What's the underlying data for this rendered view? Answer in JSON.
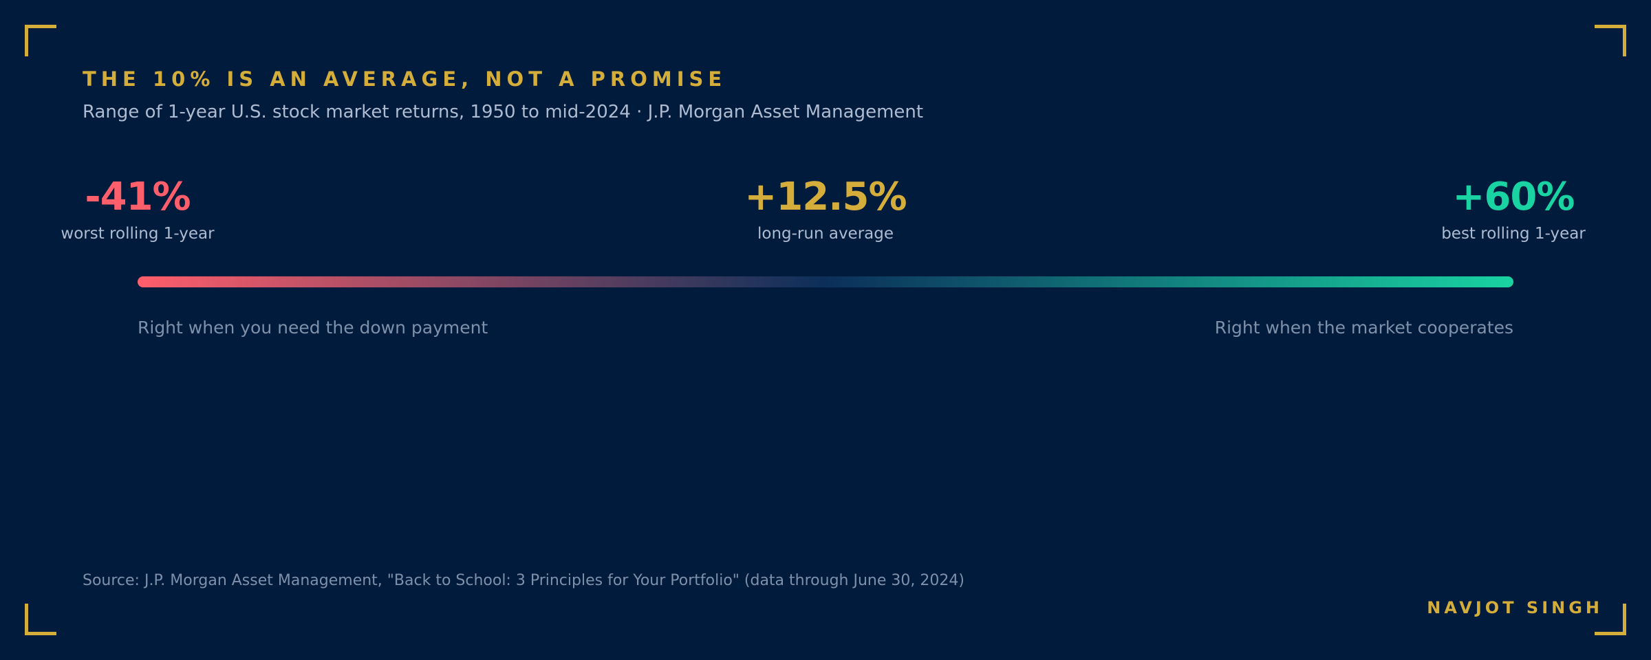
{
  "header": {
    "title": "THE 10% IS AN AVERAGE, NOT A PROMISE",
    "subtitle": "Range of 1-year U.S. stock market returns, 1950 to mid-2024 · J.P. Morgan Asset Management"
  },
  "chart_data": {
    "type": "range",
    "title": "THE 10% IS AN AVERAGE, NOT A PROMISE",
    "subtitle": "Range of 1-year U.S. stock market returns, 1950 to mid-2024 · J.P. Morgan Asset Management",
    "unit": "%",
    "min": {
      "value": -41,
      "display": "-41%",
      "label": "worst rolling 1-year",
      "color": "#ff5e6b"
    },
    "avg": {
      "value": 12.5,
      "display": "+12.5%",
      "label": "long-run average",
      "color": "#d4ad3a"
    },
    "max": {
      "value": 60,
      "display": "+60%",
      "label": "best rolling 1-year",
      "color": "#19d3a2"
    },
    "annotations": {
      "left": "Right when you need the down payment",
      "right": "Right when the market cooperates"
    },
    "gradient_colors": {
      "start": "#ff5e6b",
      "middle": "#0b2f5a",
      "end": "#19d3a2"
    },
    "source": "Source: J.P. Morgan Asset Management, \"Back to School: 3 Principles for Your Portfolio\" (data through June 30, 2024)"
  },
  "footer": {
    "author": "NAVJOT SINGH"
  },
  "colors": {
    "background": "#001b3c",
    "accent": "#d4ad3a",
    "muted_text": "#7f90aa",
    "light_text": "#aebbd0"
  }
}
